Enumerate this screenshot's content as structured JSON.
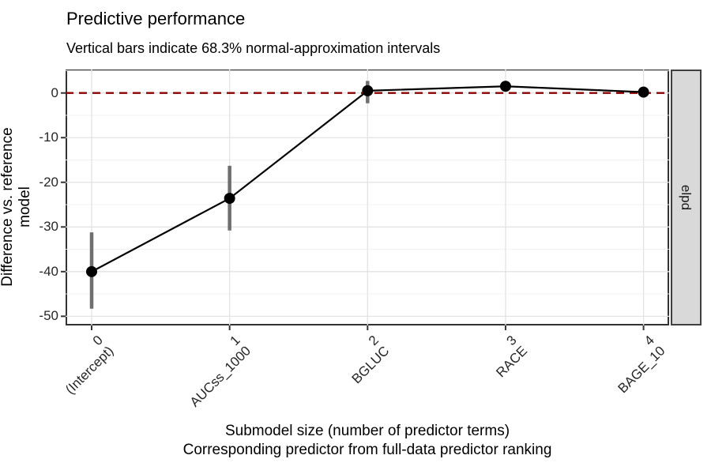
{
  "header": {
    "title": "Predictive performance",
    "subtitle": "Vertical bars indicate 68.3% normal-approximation intervals"
  },
  "chart_data": {
    "type": "line",
    "x": [
      0,
      1,
      2,
      3,
      4
    ],
    "categories": [
      {
        "size": "0",
        "predictor": "(Intercept)"
      },
      {
        "size": "1",
        "predictor": "AUCss_1000"
      },
      {
        "size": "2",
        "predictor": "BGLUC"
      },
      {
        "size": "3",
        "predictor": "RACE"
      },
      {
        "size": "4",
        "predictor": "BAGE_10"
      }
    ],
    "series": [
      {
        "name": "elpd difference vs. reference model",
        "values": [
          -40.0,
          -23.6,
          0.5,
          1.5,
          0.2
        ],
        "ci_lower": [
          -48.3,
          -30.8,
          -2.3,
          0.3,
          -1.0
        ],
        "ci_upper": [
          -31.2,
          -16.3,
          2.7,
          2.7,
          1.4
        ]
      }
    ],
    "title": "Predictive performance",
    "subtitle": "Vertical bars indicate 68.3% normal-approximation intervals",
    "xlabel_line1": "Submodel size (number of predictor terms)",
    "xlabel_line2": "Corresponding predictor from full-data predictor ranking",
    "ylabel": "Difference vs. reference model",
    "y_ticks": [
      0,
      -10,
      -20,
      -30,
      -40,
      -50
    ],
    "y_minor_ticks": [
      5,
      -5,
      -15,
      -25,
      -35,
      -45
    ],
    "ylim": [
      -52.2,
      5.3
    ],
    "xlim": [
      -0.19,
      4.19
    ],
    "grid": "horizontal major+minor, vertical major only",
    "legend": "none",
    "reference_line": {
      "y": 0,
      "style": "dashed",
      "color": "#8B0000"
    },
    "facet_strip": "elpd"
  },
  "colors": {
    "reference_line": "#8B0000",
    "error_bar": "#6F6F6F",
    "line_and_points": "#000000",
    "panel_border": "#333333",
    "strip_background": "#D9D9D9",
    "grid_major": "#E3E3E3",
    "grid_minor": "#F1F1F1",
    "tick_label": "#262626"
  }
}
